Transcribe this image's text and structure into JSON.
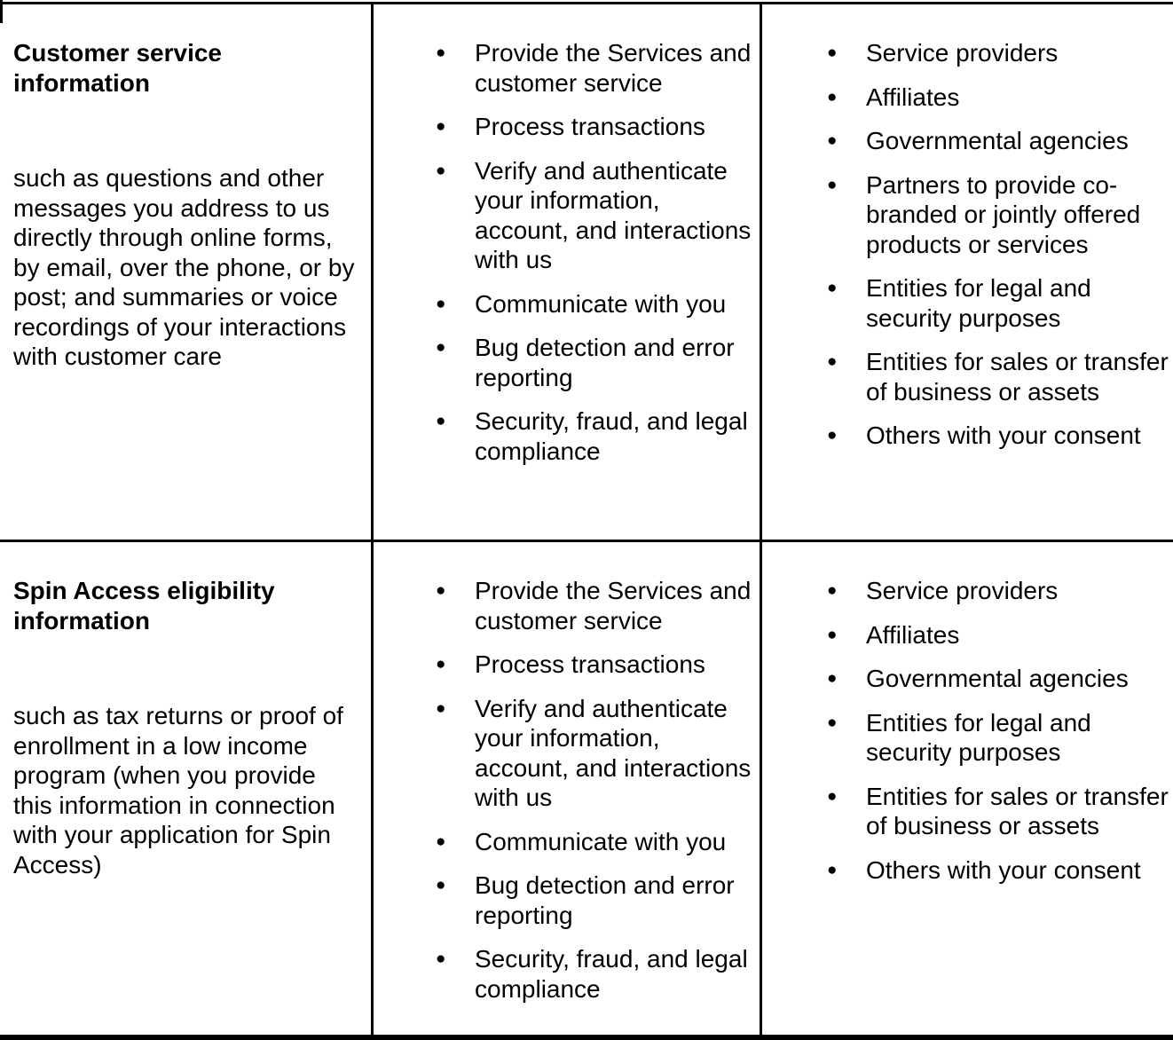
{
  "colors": {
    "background": "#ffffff",
    "text": "#000000",
    "border": "#000000"
  },
  "glyphs": {
    "bullet": "●"
  },
  "table": {
    "rows": [
      {
        "title": "Customer service information",
        "description": "such as questions and other messages you address to us directly through online forms, by email, over the phone, or by post; and summaries or voice recordings of your interactions with customer care",
        "purposes": [
          "Provide the Services and customer service",
          "Process transactions",
          "Verify and authenticate your information, account, and interactions with us",
          "Communicate with you",
          "Bug detection and error reporting",
          "Security, fraud, and legal compliance"
        ],
        "recipients": [
          "Service providers",
          "Affiliates",
          "Governmental agencies",
          "Partners to provide co-branded or jointly offered products or services",
          "Entities for legal and security purposes",
          "Entities for sales or transfer of business or assets",
          "Others with your consent"
        ]
      },
      {
        "title": "Spin Access eligibility information",
        "description": "such as tax returns or proof of enrollment in a low income program (when you provide this information in connection with your application for Spin Access)",
        "purposes": [
          "Provide the Services and customer service",
          "Process transactions",
          "Verify and authenticate your information, account, and interactions with us",
          "Communicate with you",
          "Bug detection and error reporting",
          "Security, fraud, and legal compliance"
        ],
        "recipients": [
          "Service providers",
          "Affiliates",
          "Governmental agencies",
          "Entities for legal and security purposes",
          "Entities for sales or transfer of business or assets",
          "Others with your consent"
        ]
      }
    ]
  }
}
